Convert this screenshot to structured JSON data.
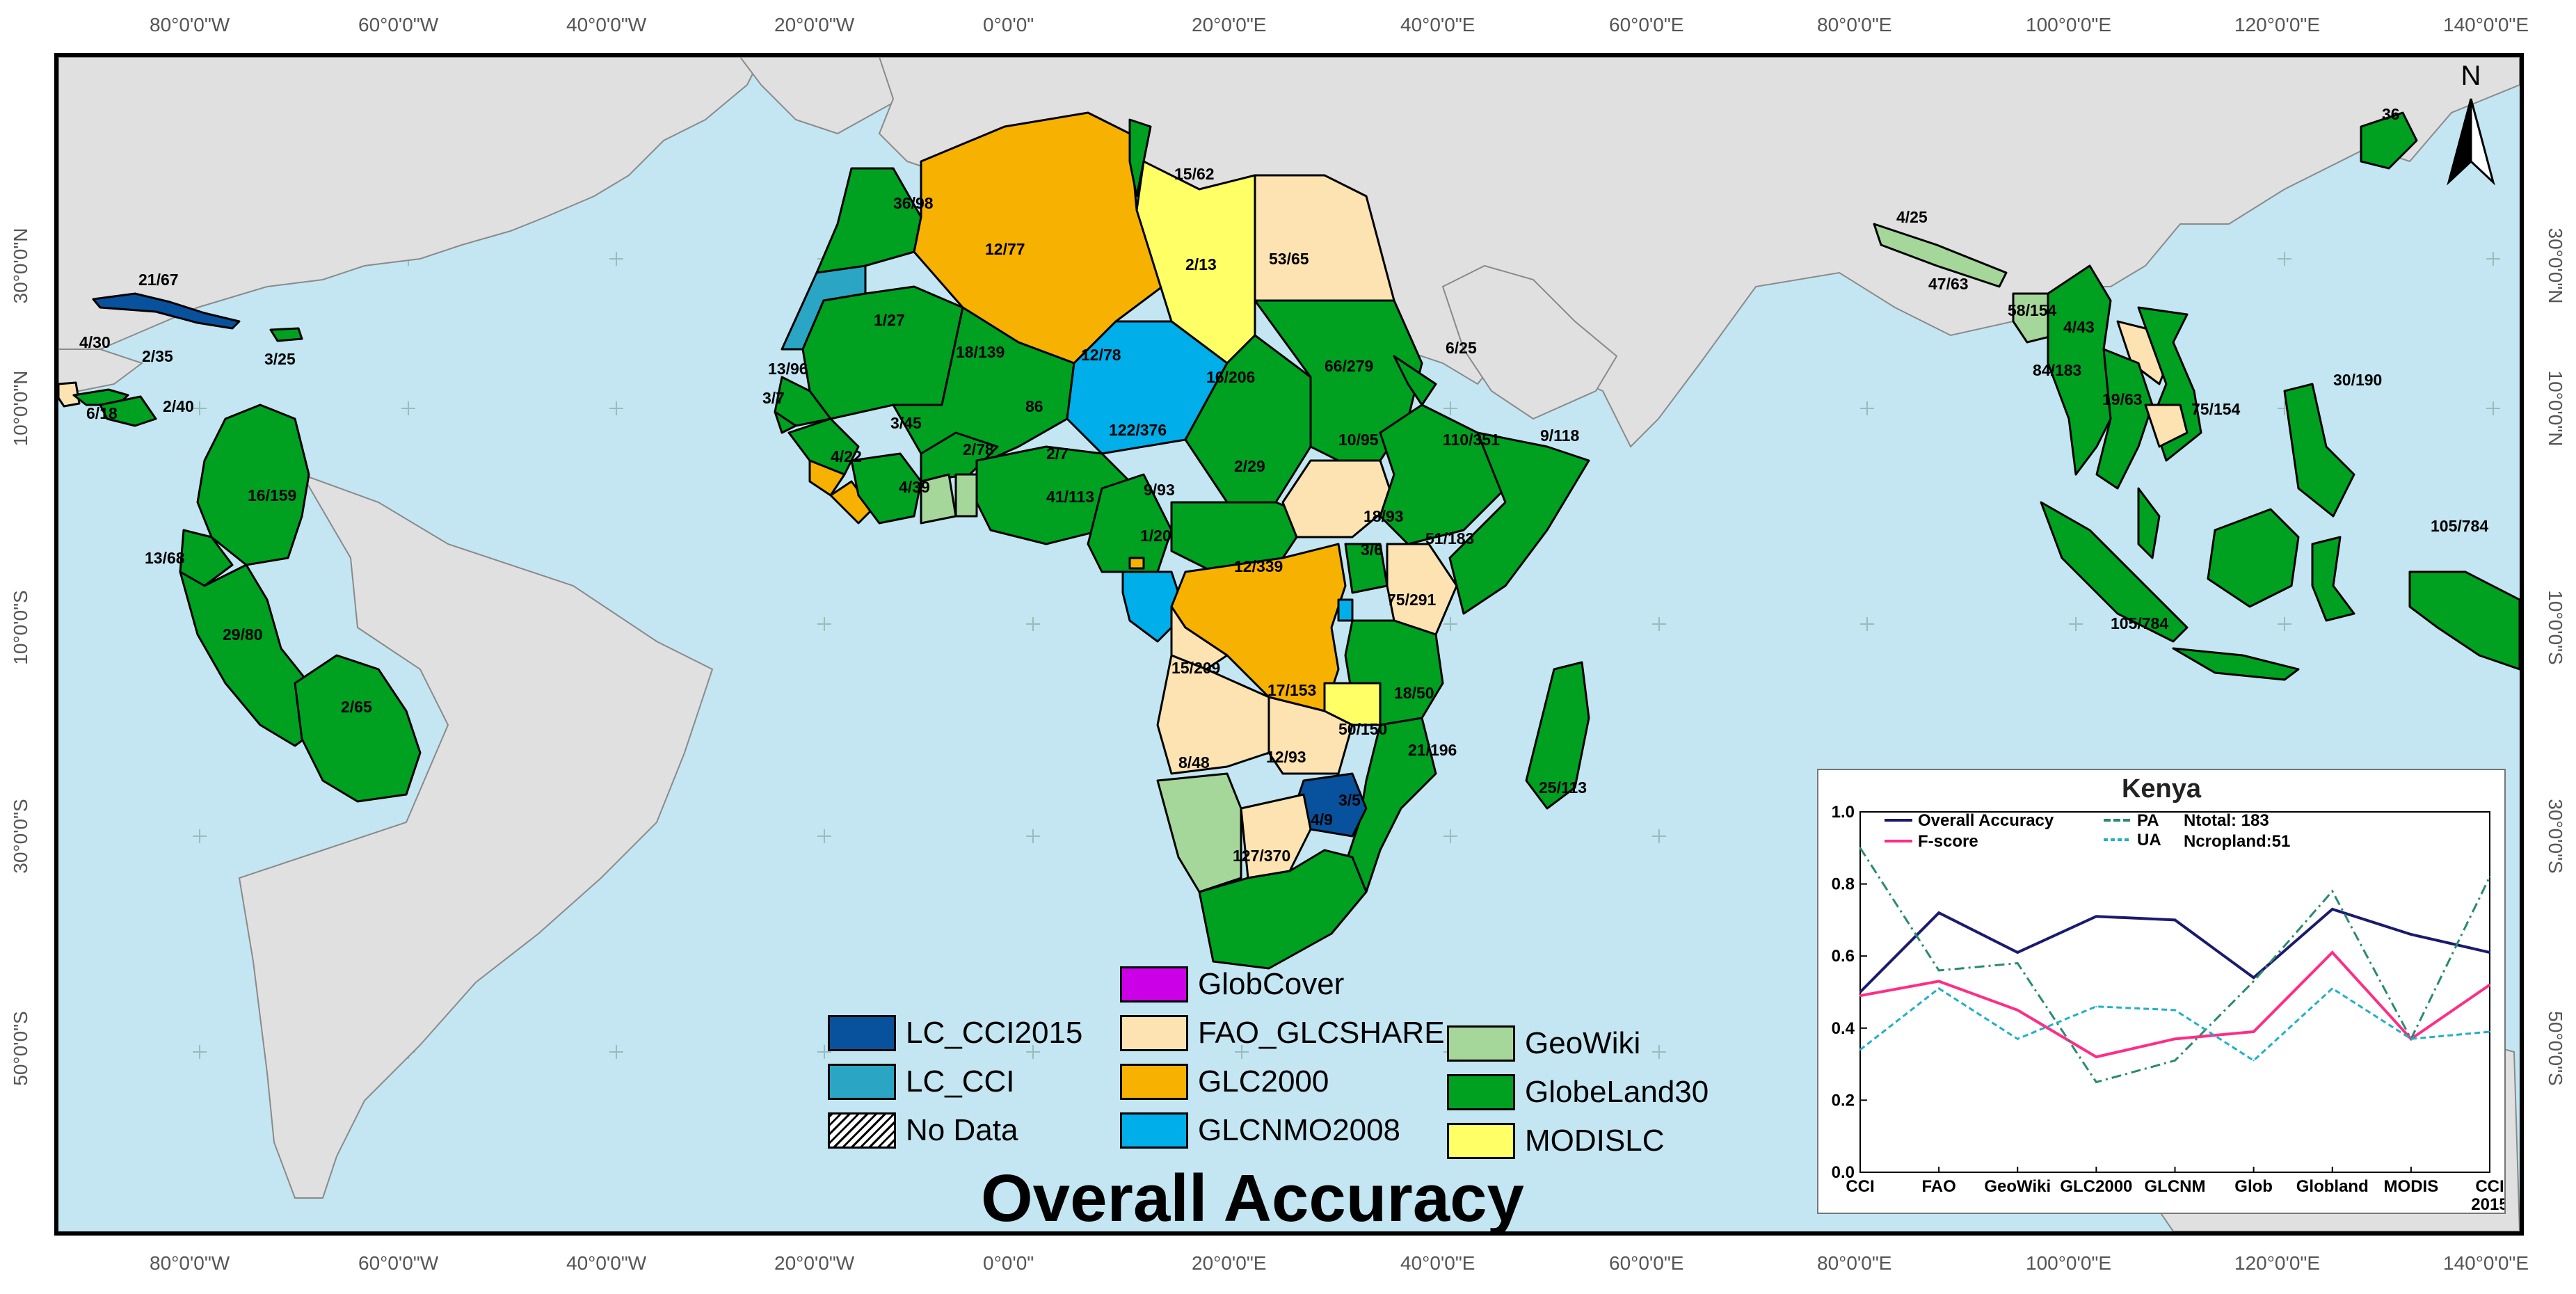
{
  "map": {
    "title": "Overall Accuracy",
    "north_label": "N",
    "colors": {
      "ocean": "#c3e6f2",
      "land_other": "#e0e0e0",
      "LC_CCI2015": "#08519c",
      "LC_CCI": "#2aa6c4",
      "GlobCover": "#cc00e6",
      "FAO_GLCSHARE": "#fde3b1",
      "GLC2000": "#f7b100",
      "GLCNMO2008": "#00aee9",
      "GeoWiki": "#a6d79a",
      "GlobeLand30": "#00a021",
      "MODISLC": "#ffff66"
    },
    "longitude_labels": [
      "80°0'0\"W",
      "60°0'0\"W",
      "40°0'0\"W",
      "20°0'0\"W",
      "0°0'0\"",
      "20°0'0\"E",
      "40°0'0\"E",
      "60°0'0\"E",
      "80°0'0\"E",
      "100°0'0\"E",
      "120°0'0\"E",
      "140°0'0\"E"
    ],
    "latitude_labels": [
      "30°0'0\"N",
      "10°0'0\"N",
      "10°0'0\"S",
      "30°0'0\"S",
      "50°0'0\"S"
    ],
    "country_labels": [
      "21/67",
      "4/30",
      "2/35",
      "2/40",
      "6/18",
      "3/25",
      "16/159",
      "13/68",
      "29/80",
      "2/65",
      "36/98",
      "12/77",
      "15/62",
      "2/13",
      "53/65",
      "1/27",
      "18/139",
      "12/78",
      "16/206",
      "66/279",
      "6/25",
      "13/96",
      "3/7",
      "3/45",
      "4/22",
      "4/39",
      "2/78",
      "86",
      "2/7",
      "41/113",
      "122/376",
      "9/93",
      "2/29",
      "10/95",
      "110/351",
      "9/118",
      "1/20",
      "12/339",
      "18/93",
      "3/6",
      "51/183",
      "75/291",
      "15/209",
      "17/153",
      "18/50",
      "50/150",
      "12/93",
      "8/48",
      "21/196",
      "3/5",
      "4/9",
      "127/370",
      "25/113",
      "4/25",
      "47/63",
      "58/154",
      "4/43",
      "84/183",
      "19/63",
      "75/154",
      "30/190",
      "105/784",
      "105/784",
      "36"
    ]
  },
  "legend": {
    "items": [
      {
        "label": "LC_CCI2015",
        "color": "#08519c"
      },
      {
        "label": "LC_CCI",
        "color": "#2aa6c4"
      },
      {
        "label": "No Data",
        "color": "hatch"
      },
      {
        "label": "GlobCover",
        "color": "#cc00e6"
      },
      {
        "label": "FAO_GLCSHARE",
        "color": "#fde3b1"
      },
      {
        "label": "GLC2000",
        "color": "#f7b100"
      },
      {
        "label": "GLCNMO2008",
        "color": "#00aee9"
      },
      {
        "label": "GeoWiki",
        "color": "#a6d79a"
      },
      {
        "label": "GlobeLand30",
        "color": "#00a021"
      },
      {
        "label": "MODISLC",
        "color": "#ffff66"
      }
    ]
  },
  "chart_data": {
    "type": "line",
    "title": "Kenya",
    "categories": [
      "CCI",
      "FAO",
      "GeoWiki",
      "GLC2000",
      "GLCNM",
      "Glob",
      "Globland",
      "MODIS",
      "CCI 2015"
    ],
    "category_labels": [
      "CCI",
      "FAO",
      "GeoWiki",
      "GLC2000",
      "GLCNM",
      "Glob",
      "Globland",
      "MODIS",
      "CCI",
      "2015"
    ],
    "ylim": [
      0,
      1
    ],
    "yticks": [
      "0.0",
      "0.2",
      "0.4",
      "0.6",
      "0.8",
      "1.0"
    ],
    "grid": false,
    "legend_position": "top",
    "annotations": [
      "Ntotal: 183",
      "Ncropland:51"
    ],
    "series": [
      {
        "name": "Overall Accuracy",
        "color": "#1a1a6e",
        "style": "solid",
        "values": [
          0.5,
          0.72,
          0.61,
          0.71,
          0.7,
          0.54,
          0.73,
          0.66,
          0.61
        ]
      },
      {
        "name": "F-score",
        "color": "#ff2d86",
        "style": "solid",
        "values": [
          0.49,
          0.53,
          0.45,
          0.32,
          0.37,
          0.39,
          0.61,
          0.37,
          0.52
        ]
      },
      {
        "name": "PA",
        "color": "#2a8a70",
        "style": "dashed",
        "values": [
          0.9,
          0.56,
          0.58,
          0.25,
          0.31,
          0.53,
          0.78,
          0.37,
          0.82
        ]
      },
      {
        "name": "UA",
        "color": "#20b0c8",
        "style": "dotted",
        "values": [
          0.34,
          0.51,
          0.37,
          0.46,
          0.45,
          0.31,
          0.51,
          0.37,
          0.39
        ]
      }
    ]
  }
}
